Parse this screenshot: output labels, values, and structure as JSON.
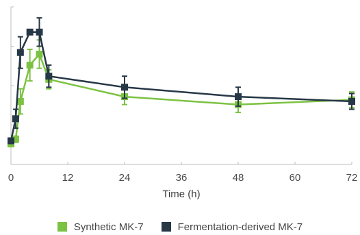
{
  "chart_data": {
    "type": "line",
    "xlabel": "Time (h)",
    "ylabel": "",
    "xlim": [
      0,
      72
    ],
    "ylim": [
      0,
      100
    ],
    "xticks": [
      0,
      12,
      24,
      36,
      48,
      60,
      72
    ],
    "xtick_labels": [
      "0",
      "12",
      "24",
      "36",
      "48",
      "60",
      "72"
    ],
    "legend_position": "bottom-center",
    "grid": false,
    "series": [
      {
        "name": "Synthetic MK-7",
        "color": "#7cc242",
        "x": [
          0,
          1,
          2,
          4,
          6,
          8,
          24,
          48,
          72
        ],
        "y": [
          13,
          16,
          40,
          63,
          70,
          54,
          43,
          38,
          41
        ],
        "err": [
          0,
          2,
          8,
          10,
          9,
          6,
          5,
          5,
          5
        ]
      },
      {
        "name": "Fermentation-derived MK-7",
        "color": "#263746",
        "x": [
          0,
          1,
          2,
          4,
          6,
          8,
          24,
          48,
          72
        ],
        "y": [
          15,
          29,
          71,
          84,
          84,
          56,
          49,
          43,
          40
        ],
        "err": [
          0,
          6,
          10,
          0,
          9,
          7,
          7,
          6,
          5
        ]
      }
    ]
  }
}
